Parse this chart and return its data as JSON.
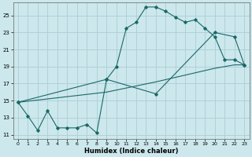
{
  "xlabel": "Humidex (Indice chaleur)",
  "bg_color": "#cce8ec",
  "grid_color": "#b0d0d8",
  "line_color": "#1a6868",
  "xlim": [
    -0.5,
    23.5
  ],
  "ylim": [
    10.5,
    26.5
  ],
  "yticks": [
    11,
    13,
    15,
    17,
    19,
    21,
    23,
    25
  ],
  "xticks": [
    0,
    1,
    2,
    3,
    4,
    5,
    6,
    7,
    8,
    9,
    10,
    11,
    12,
    13,
    14,
    15,
    16,
    17,
    18,
    19,
    20,
    21,
    22,
    23
  ],
  "line1_x": [
    0,
    1,
    2,
    3,
    4,
    5,
    6,
    7,
    8,
    9,
    10,
    11,
    12,
    13,
    14,
    15,
    16,
    17,
    18,
    19,
    20,
    21,
    22,
    23
  ],
  "line1_y": [
    14.8,
    13.2,
    11.5,
    13.8,
    11.8,
    11.8,
    11.8,
    12.2,
    11.2,
    17.5,
    19.0,
    23.5,
    24.2,
    26.0,
    26.0,
    25.5,
    24.8,
    24.2,
    24.5,
    23.5,
    22.5,
    19.8,
    19.8,
    19.2
  ],
  "line2_x": [
    0,
    9,
    14,
    20,
    22,
    23
  ],
  "line2_y": [
    14.8,
    16.0,
    17.2,
    18.8,
    19.2,
    19.2
  ],
  "line3_x": [
    0,
    9,
    14,
    20,
    22,
    23
  ],
  "line3_y": [
    14.8,
    17.5,
    15.8,
    23.0,
    22.5,
    19.2
  ]
}
